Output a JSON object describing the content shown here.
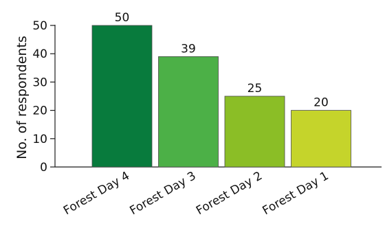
{
  "chart_data": {
    "type": "bar",
    "categories": [
      "Forest Day 4",
      "Forest Day 3",
      "Forest Day 2",
      "Forest Day 1"
    ],
    "values": [
      50,
      39,
      25,
      20
    ],
    "colors": [
      "#087b3d",
      "#4cb047",
      "#8bbe26",
      "#c5d42b"
    ],
    "title": "",
    "xlabel": "",
    "ylabel": "No. of respondents",
    "ylim": [
      0,
      50
    ],
    "yticks": [
      0,
      10,
      20,
      30,
      40,
      50
    ],
    "grid": false,
    "data_labels": true
  }
}
